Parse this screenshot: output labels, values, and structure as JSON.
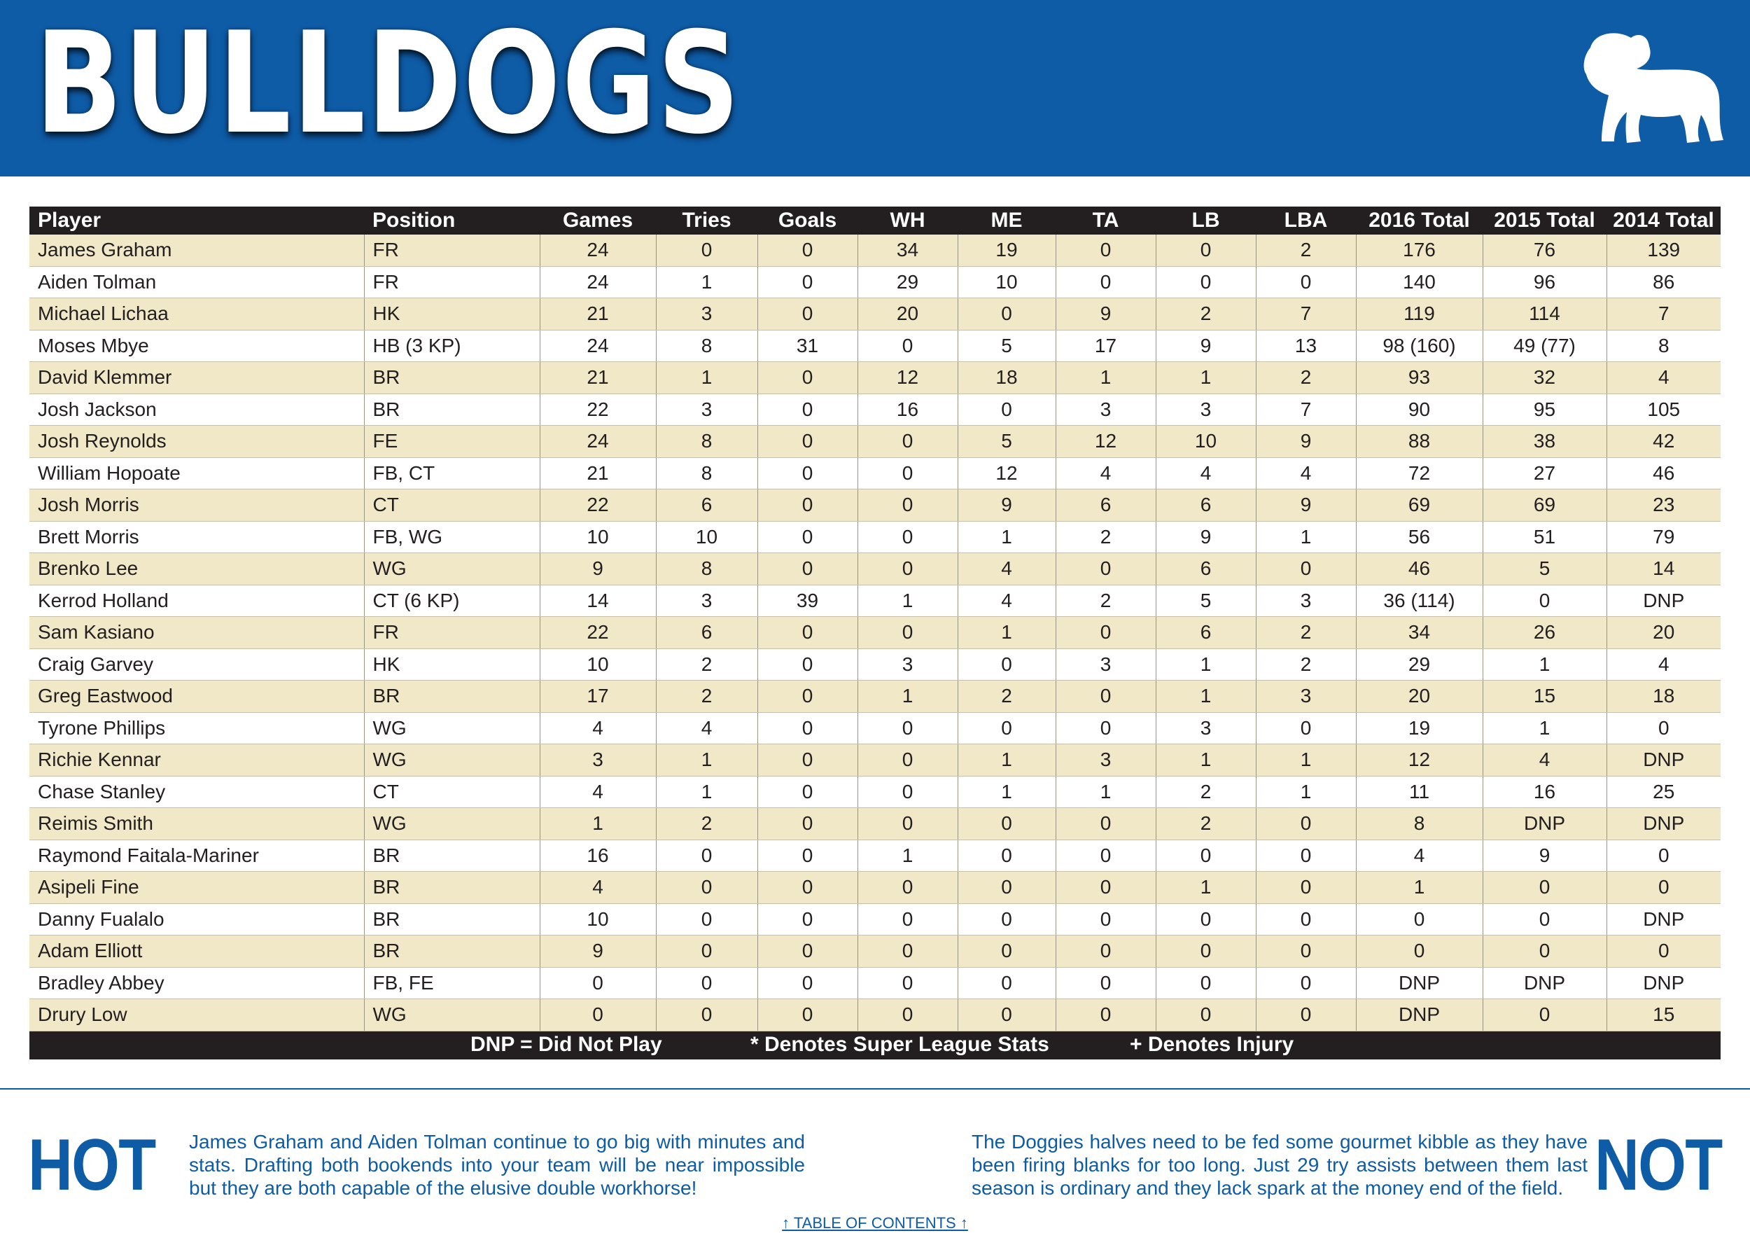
{
  "banner": {
    "title": "BULLDOGS",
    "background_color": "#0e5ba6",
    "logo": "bulldog-silhouette-icon"
  },
  "table": {
    "headers": [
      "Player",
      "Position",
      "Games",
      "Tries",
      "Goals",
      "WH",
      "ME",
      "TA",
      "LB",
      "LBA",
      "2016 Total",
      "2015 Total",
      "2014 Total"
    ],
    "rows": [
      [
        "James Graham",
        "FR",
        "24",
        "0",
        "0",
        "34",
        "19",
        "0",
        "0",
        "2",
        "176",
        "76",
        "139"
      ],
      [
        "Aiden Tolman",
        "FR",
        "24",
        "1",
        "0",
        "29",
        "10",
        "0",
        "0",
        "0",
        "140",
        "96",
        "86"
      ],
      [
        "Michael Lichaa",
        "HK",
        "21",
        "3",
        "0",
        "20",
        "0",
        "9",
        "2",
        "7",
        "119",
        "114",
        "7"
      ],
      [
        "Moses Mbye",
        "HB (3 KP)",
        "24",
        "8",
        "31",
        "0",
        "5",
        "17",
        "9",
        "13",
        "98 (160)",
        "49 (77)",
        "8"
      ],
      [
        "David Klemmer",
        "BR",
        "21",
        "1",
        "0",
        "12",
        "18",
        "1",
        "1",
        "2",
        "93",
        "32",
        "4"
      ],
      [
        "Josh Jackson",
        "BR",
        "22",
        "3",
        "0",
        "16",
        "0",
        "3",
        "3",
        "7",
        "90",
        "95",
        "105"
      ],
      [
        "Josh Reynolds",
        "FE",
        "24",
        "8",
        "0",
        "0",
        "5",
        "12",
        "10",
        "9",
        "88",
        "38",
        "42"
      ],
      [
        "William Hopoate",
        "FB, CT",
        "21",
        "8",
        "0",
        "0",
        "12",
        "4",
        "4",
        "4",
        "72",
        "27",
        "46"
      ],
      [
        "Josh Morris",
        "CT",
        "22",
        "6",
        "0",
        "0",
        "9",
        "6",
        "6",
        "9",
        "69",
        "69",
        "23"
      ],
      [
        "Brett Morris",
        "FB, WG",
        "10",
        "10",
        "0",
        "0",
        "1",
        "2",
        "9",
        "1",
        "56",
        "51",
        "79"
      ],
      [
        "Brenko Lee",
        "WG",
        "9",
        "8",
        "0",
        "0",
        "4",
        "0",
        "6",
        "0",
        "46",
        "5",
        "14"
      ],
      [
        "Kerrod Holland",
        "CT (6 KP)",
        "14",
        "3",
        "39",
        "1",
        "4",
        "2",
        "5",
        "3",
        "36 (114)",
        "0",
        "DNP"
      ],
      [
        "Sam Kasiano",
        "FR",
        "22",
        "6",
        "0",
        "0",
        "1",
        "0",
        "6",
        "2",
        "34",
        "26",
        "20"
      ],
      [
        "Craig Garvey",
        "HK",
        "10",
        "2",
        "0",
        "3",
        "0",
        "3",
        "1",
        "2",
        "29",
        "1",
        "4"
      ],
      [
        "Greg Eastwood",
        "BR",
        "17",
        "2",
        "0",
        "1",
        "2",
        "0",
        "1",
        "3",
        "20",
        "15",
        "18"
      ],
      [
        "Tyrone Phillips",
        "WG",
        "4",
        "4",
        "0",
        "0",
        "0",
        "0",
        "3",
        "0",
        "19",
        "1",
        "0"
      ],
      [
        "Richie Kennar",
        "WG",
        "3",
        "1",
        "0",
        "0",
        "1",
        "3",
        "1",
        "1",
        "12",
        "4",
        "DNP"
      ],
      [
        "Chase Stanley",
        "CT",
        "4",
        "1",
        "0",
        "0",
        "1",
        "1",
        "2",
        "1",
        "11",
        "16",
        "25"
      ],
      [
        "Reimis Smith",
        "WG",
        "1",
        "2",
        "0",
        "0",
        "0",
        "0",
        "2",
        "0",
        "8",
        "DNP",
        "DNP"
      ],
      [
        "Raymond Faitala-Mariner",
        "BR",
        "16",
        "0",
        "0",
        "1",
        "0",
        "0",
        "0",
        "0",
        "4",
        "9",
        "0"
      ],
      [
        "Asipeli Fine",
        "BR",
        "4",
        "0",
        "0",
        "0",
        "0",
        "0",
        "1",
        "0",
        "1",
        "0",
        "0"
      ],
      [
        "Danny Fualalo",
        "BR",
        "10",
        "0",
        "0",
        "0",
        "0",
        "0",
        "0",
        "0",
        "0",
        "0",
        "DNP"
      ],
      [
        "Adam Elliott",
        "BR",
        "9",
        "0",
        "0",
        "0",
        "0",
        "0",
        "0",
        "0",
        "0",
        "0",
        "0"
      ],
      [
        "Bradley Abbey",
        "FB, FE",
        "0",
        "0",
        "0",
        "0",
        "0",
        "0",
        "0",
        "0",
        "DNP",
        "DNP",
        "DNP"
      ],
      [
        "Drury Low",
        "WG",
        "0",
        "0",
        "0",
        "0",
        "0",
        "0",
        "0",
        "0",
        "DNP",
        "0",
        "15"
      ]
    ],
    "legend": {
      "dnp": "DNP = Did Not Play",
      "super_league": "* Denotes Super League Stats",
      "injury": "+ Denotes Injury"
    },
    "row_color_odd": "#f1e8c8",
    "header_color": "#231f20"
  },
  "hot": {
    "label": "HOT",
    "text": "James Graham and Aiden Tolman continue to go big with minutes and stats.  Drafting both bookends into your team will be near impossible but they are both capable of the elusive double workhorse!"
  },
  "not": {
    "label": "NOT",
    "text": "The Doggies halves need to be fed some gourmet kibble as they have been firing blanks for too long.  Just 29 try assists between them last season is ordinary and they lack spark at the money end of the field."
  },
  "footer": {
    "toc_link": "↑ TABLE OF CONTENTS ↑"
  }
}
